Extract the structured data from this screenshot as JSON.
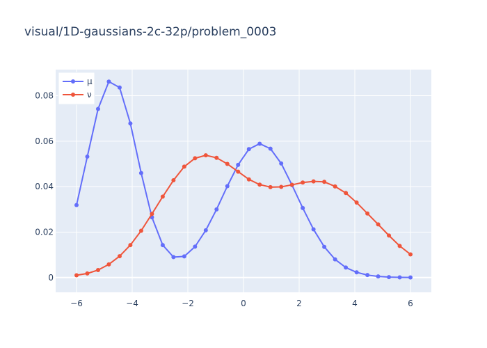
{
  "chart_data": {
    "type": "line",
    "title": "visual/1D-gaussians-2c-32p/problem_0003",
    "xlabel": "",
    "ylabel": "",
    "xlim": [
      -6.75,
      6.75
    ],
    "ylim": [
      -0.0065,
      0.0915
    ],
    "xticks": [
      -6,
      -4,
      -2,
      0,
      2,
      4,
      6
    ],
    "yticks": [
      0,
      0.02,
      0.04,
      0.06,
      0.08
    ],
    "xtick_labels": [
      "−6",
      "−4",
      "−2",
      "0",
      "2",
      "4",
      "6"
    ],
    "ytick_labels": [
      "0",
      "0.02",
      "0.04",
      "0.06",
      "0.08"
    ],
    "grid": true,
    "legend_position": "top-left",
    "x": [
      -6.0,
      -5.613,
      -5.226,
      -4.839,
      -4.452,
      -4.065,
      -3.677,
      -3.29,
      -2.903,
      -2.516,
      -2.129,
      -1.742,
      -1.355,
      -0.968,
      -0.581,
      -0.194,
      0.194,
      0.581,
      0.968,
      1.355,
      1.742,
      2.129,
      2.516,
      2.903,
      3.29,
      3.677,
      4.065,
      4.452,
      4.839,
      5.226,
      5.613,
      6.0
    ],
    "series": [
      {
        "name": "μ",
        "color": "#636efa",
        "values": [
          0.0319,
          0.0532,
          0.0742,
          0.0862,
          0.0836,
          0.0678,
          0.046,
          0.0265,
          0.0143,
          0.009,
          0.0093,
          0.0136,
          0.0208,
          0.03,
          0.0402,
          0.0496,
          0.0565,
          0.0589,
          0.0567,
          0.0502,
          0.0407,
          0.0306,
          0.0212,
          0.0135,
          0.008,
          0.0044,
          0.0023,
          0.0011,
          0.0005,
          0.0002,
          0.0001,
          4e-05
        ]
      },
      {
        "name": "ν",
        "color": "#ef553b",
        "values": [
          0.001,
          0.0018,
          0.0033,
          0.0058,
          0.0094,
          0.0143,
          0.0206,
          0.028,
          0.0356,
          0.0428,
          0.0488,
          0.0525,
          0.0538,
          0.0527,
          0.05,
          0.0466,
          0.0432,
          0.0409,
          0.0398,
          0.0399,
          0.0408,
          0.0418,
          0.0423,
          0.0421,
          0.0401,
          0.0372,
          0.033,
          0.0282,
          0.0234,
          0.0185,
          0.0139,
          0.0102
        ]
      }
    ]
  }
}
